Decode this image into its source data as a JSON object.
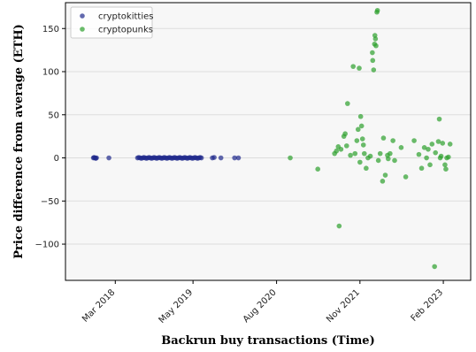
{
  "chart_data": {
    "type": "scatter",
    "xlabel": "Backrun buy transactions (Time)",
    "ylabel": "Price difference from average (ETH)",
    "xlim": [
      "2017-06-01",
      "2023-07-01"
    ],
    "ylim": [
      -142,
      180
    ],
    "x_ticks": [
      {
        "date": "2018-03-01",
        "label": "Mar 2018"
      },
      {
        "date": "2019-05-01",
        "label": "May 2019"
      },
      {
        "date": "2020-08-01",
        "label": "Aug 2020"
      },
      {
        "date": "2021-11-01",
        "label": "Nov 2021"
      },
      {
        "date": "2023-02-01",
        "label": "Feb 2023"
      }
    ],
    "y_ticks": [
      -100,
      -50,
      0,
      50,
      100,
      150
    ],
    "grid": "horizontal",
    "legend_position": "top-left",
    "colors": {
      "cryptokitties": "#1f2a8c",
      "cryptopunks": "#2ca02c"
    },
    "series": [
      {
        "name": "cryptokitties",
        "color": "#1f2a8c",
        "points": [
          [
            "2017-11-01",
            0
          ],
          [
            "2017-11-05",
            0.5
          ],
          [
            "2017-11-10",
            0
          ],
          [
            "2017-11-14",
            -0.5
          ],
          [
            "2017-11-18",
            0
          ],
          [
            "2018-01-25",
            0
          ],
          [
            "2018-07-01",
            0
          ],
          [
            "2018-07-08",
            0.5
          ],
          [
            "2018-07-15",
            0
          ],
          [
            "2018-07-22",
            -0.5
          ],
          [
            "2018-07-29",
            0
          ],
          [
            "2018-08-05",
            0.5
          ],
          [
            "2018-08-12",
            0
          ],
          [
            "2018-08-19",
            -0.5
          ],
          [
            "2018-08-26",
            0
          ],
          [
            "2018-09-02",
            0.5
          ],
          [
            "2018-09-09",
            0
          ],
          [
            "2018-09-16",
            -0.5
          ],
          [
            "2018-09-23",
            0
          ],
          [
            "2018-09-30",
            0.5
          ],
          [
            "2018-10-07",
            0
          ],
          [
            "2018-10-14",
            -0.5
          ],
          [
            "2018-10-21",
            0
          ],
          [
            "2018-10-28",
            0.5
          ],
          [
            "2018-11-04",
            0
          ],
          [
            "2018-11-11",
            -0.5
          ],
          [
            "2018-11-18",
            0
          ],
          [
            "2018-11-25",
            0.5
          ],
          [
            "2018-12-02",
            0
          ],
          [
            "2018-12-09",
            -0.5
          ],
          [
            "2018-12-16",
            0
          ],
          [
            "2018-12-23",
            0.5
          ],
          [
            "2018-12-30",
            0
          ],
          [
            "2019-01-06",
            -0.5
          ],
          [
            "2019-01-13",
            0
          ],
          [
            "2019-01-20",
            0.5
          ],
          [
            "2019-01-27",
            0
          ],
          [
            "2019-02-03",
            -0.5
          ],
          [
            "2019-02-10",
            0
          ],
          [
            "2019-02-17",
            0.5
          ],
          [
            "2019-02-24",
            0
          ],
          [
            "2019-03-03",
            -0.5
          ],
          [
            "2019-03-10",
            0
          ],
          [
            "2019-03-17",
            0.5
          ],
          [
            "2019-03-24",
            0
          ],
          [
            "2019-03-31",
            -0.5
          ],
          [
            "2019-04-07",
            0
          ],
          [
            "2019-04-14",
            0.5
          ],
          [
            "2019-04-21",
            0
          ],
          [
            "2019-04-28",
            -0.5
          ],
          [
            "2019-05-05",
            0
          ],
          [
            "2019-05-12",
            0.5
          ],
          [
            "2019-05-19",
            0
          ],
          [
            "2019-05-26",
            -0.5
          ],
          [
            "2019-06-02",
            0
          ],
          [
            "2019-06-09",
            0.5
          ],
          [
            "2019-06-16",
            0
          ],
          [
            "2019-08-15",
            0
          ],
          [
            "2019-08-25",
            0.5
          ],
          [
            "2019-10-01",
            0
          ],
          [
            "2019-12-15",
            0
          ],
          [
            "2020-01-05",
            0
          ]
        ]
      },
      {
        "name": "cryptopunks",
        "color": "#2ca02c",
        "points": [
          [
            "2020-10-15",
            0
          ],
          [
            "2021-03-15",
            -13
          ],
          [
            "2021-06-15",
            5
          ],
          [
            "2021-06-25",
            8
          ],
          [
            "2021-07-05",
            13
          ],
          [
            "2021-07-10",
            -79
          ],
          [
            "2021-07-20",
            10
          ],
          [
            "2021-08-05",
            25
          ],
          [
            "2021-08-12",
            28
          ],
          [
            "2021-08-20",
            14
          ],
          [
            "2021-08-25",
            63
          ],
          [
            "2021-09-10",
            3
          ],
          [
            "2021-09-25",
            106
          ],
          [
            "2021-10-05",
            5
          ],
          [
            "2021-10-15",
            20
          ],
          [
            "2021-10-22",
            33
          ],
          [
            "2021-10-28",
            104
          ],
          [
            "2021-11-01",
            -5
          ],
          [
            "2021-11-05",
            48
          ],
          [
            "2021-11-10",
            37
          ],
          [
            "2021-11-15",
            22
          ],
          [
            "2021-11-20",
            15
          ],
          [
            "2021-11-25",
            5
          ],
          [
            "2021-12-05",
            -12
          ],
          [
            "2021-12-15",
            0
          ],
          [
            "2021-12-28",
            2
          ],
          [
            "2022-01-08",
            122
          ],
          [
            "2022-01-10",
            113
          ],
          [
            "2022-01-15",
            102
          ],
          [
            "2022-01-20",
            132
          ],
          [
            "2022-01-22",
            142
          ],
          [
            "2022-01-25",
            138
          ],
          [
            "2022-01-28",
            130
          ],
          [
            "2022-02-02",
            169
          ],
          [
            "2022-02-05",
            171
          ],
          [
            "2022-02-10",
            -3
          ],
          [
            "2022-02-20",
            5
          ],
          [
            "2022-03-05",
            -27
          ],
          [
            "2022-03-10",
            23
          ],
          [
            "2022-03-20",
            -20
          ],
          [
            "2022-04-01",
            3
          ],
          [
            "2022-04-05",
            -1
          ],
          [
            "2022-04-15",
            5
          ],
          [
            "2022-05-01",
            20
          ],
          [
            "2022-05-10",
            -3
          ],
          [
            "2022-06-15",
            12
          ],
          [
            "2022-07-10",
            -22
          ],
          [
            "2022-08-25",
            20
          ],
          [
            "2022-09-20",
            4
          ],
          [
            "2022-10-05",
            -12
          ],
          [
            "2022-10-20",
            12
          ],
          [
            "2022-11-01",
            0
          ],
          [
            "2022-11-10",
            10
          ],
          [
            "2022-11-20",
            -8
          ],
          [
            "2022-12-01",
            16
          ],
          [
            "2022-12-15",
            -126
          ],
          [
            "2022-12-20",
            6
          ],
          [
            "2023-01-05",
            19
          ],
          [
            "2023-01-10",
            45
          ],
          [
            "2023-01-15",
            0
          ],
          [
            "2023-01-20",
            2
          ],
          [
            "2023-01-28",
            17
          ],
          [
            "2023-02-10",
            -8
          ],
          [
            "2023-02-15",
            -13
          ],
          [
            "2023-02-20",
            0
          ],
          [
            "2023-03-01",
            1
          ],
          [
            "2023-03-10",
            16
          ]
        ]
      }
    ]
  }
}
